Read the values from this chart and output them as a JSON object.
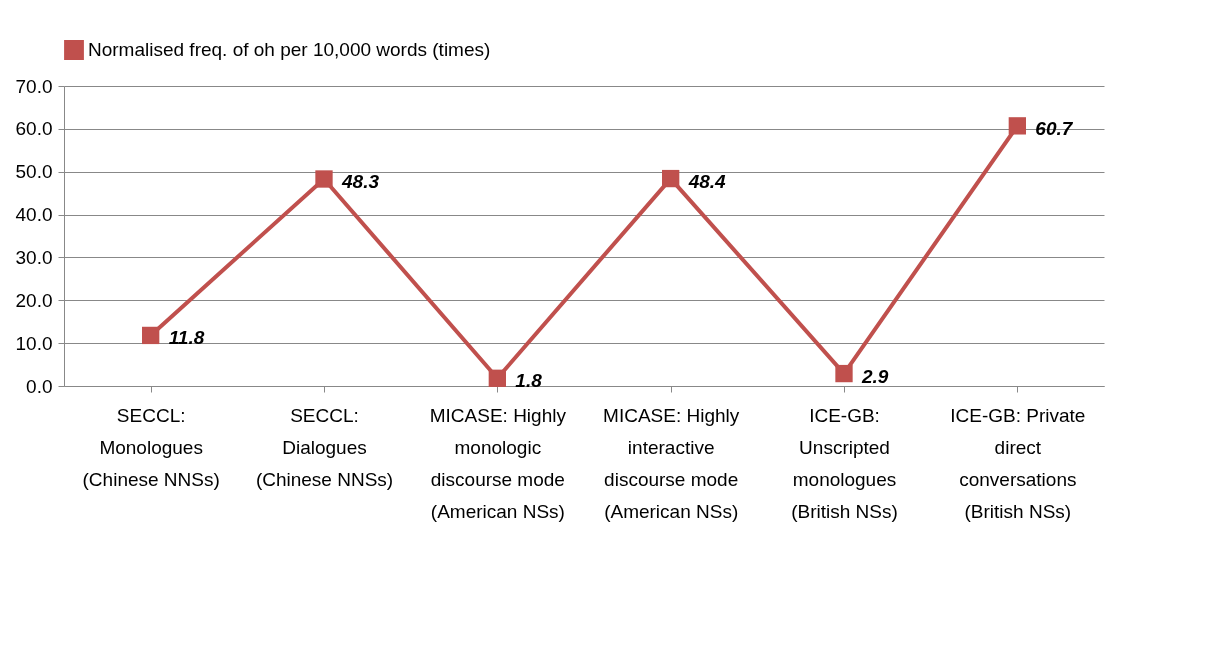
{
  "chart_data": {
    "type": "line",
    "categories": [
      "SECCL: Monologues (Chinese NNSs)",
      "SECCL: Dialogues (Chinese NNSs)",
      "MICASE: Highly monologic discourse mode (American NSs)",
      "MICASE: Highly interactive discourse mode (American NSs)",
      "ICE-GB: Unscripted monologues (British NSs)",
      "ICE-GB: Private direct conversations (British NSs)"
    ],
    "series": [
      {
        "name": "Normalised freq. of oh per 10,000 words (times)",
        "color": "#c0504d",
        "values": [
          11.8,
          48.3,
          1.8,
          48.4,
          2.9,
          60.7
        ]
      }
    ],
    "ylim": [
      0,
      70
    ],
    "yticks": [
      {
        "value": 0,
        "label": "0.0"
      },
      {
        "value": 10,
        "label": "10.0"
      },
      {
        "value": 20,
        "label": "20.0"
      },
      {
        "value": 30,
        "label": "30.0"
      },
      {
        "value": 40,
        "label": "40.0"
      },
      {
        "value": 50,
        "label": "50.0"
      },
      {
        "value": 60,
        "label": "60.0"
      },
      {
        "value": 70,
        "label": "70.0"
      }
    ],
    "grid": "y",
    "legend": "top",
    "marker": "square",
    "line_style": "solid",
    "data_labels": true
  }
}
